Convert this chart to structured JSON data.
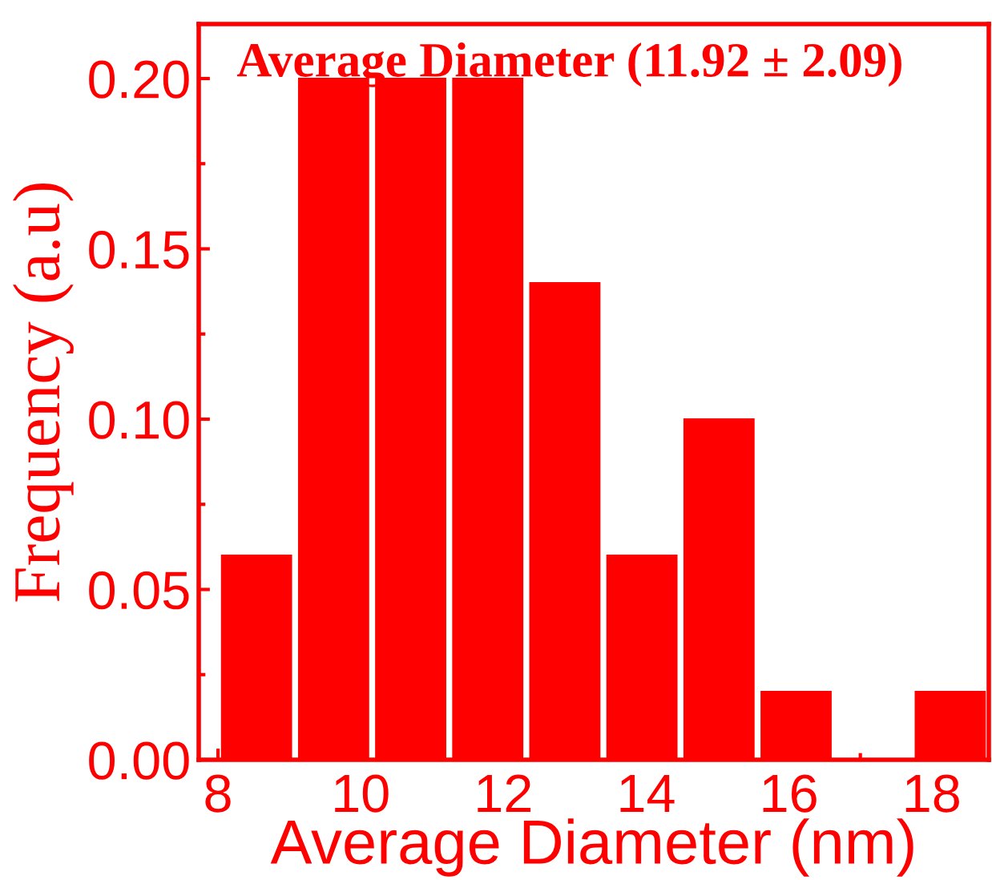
{
  "chart_data": {
    "type": "histogram",
    "title": "Average Diameter (11.92 ± 2.09)",
    "xlabel": "Average Diameter (nm)",
    "ylabel": "Frequency (a.u)",
    "color": "#ff0000",
    "bins": [
      8,
      9.08,
      10.16,
      11.24,
      12.32,
      13.4,
      14.48,
      15.56,
      16.64,
      17.72,
      18.8
    ],
    "values": [
      0.06,
      0.2,
      0.2,
      0.2,
      0.14,
      0.06,
      0.1,
      0.02,
      0,
      0.02
    ],
    "xlim": [
      7.73,
      18.8
    ],
    "xticks": [
      8,
      10,
      12,
      14,
      16,
      18
    ],
    "ylim": [
      0,
      0.216
    ],
    "yticks": [
      {
        "value": 0,
        "label": "0.00"
      },
      {
        "value": 0.05,
        "label": "0.05"
      },
      {
        "value": 0.1,
        "label": "0.10"
      },
      {
        "value": 0.15,
        "label": "0.15"
      },
      {
        "value": 0.2,
        "label": "0.20"
      }
    ],
    "grid": false,
    "legend": false
  }
}
